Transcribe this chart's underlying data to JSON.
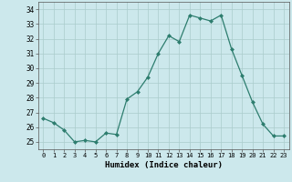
{
  "x": [
    0,
    1,
    2,
    3,
    4,
    5,
    6,
    7,
    8,
    9,
    10,
    11,
    12,
    13,
    14,
    15,
    16,
    17,
    18,
    19,
    20,
    21,
    22,
    23
  ],
  "y": [
    26.6,
    26.3,
    25.8,
    25.0,
    25.1,
    25.0,
    25.6,
    25.5,
    27.9,
    28.4,
    29.4,
    31.0,
    32.2,
    31.8,
    33.6,
    33.4,
    33.2,
    33.6,
    31.3,
    29.5,
    27.7,
    26.2,
    25.4,
    25.4
  ],
  "line_color": "#2d7d6e",
  "marker": "D",
  "markersize": 2.0,
  "linewidth": 0.9,
  "xlabel": "Humidex (Indice chaleur)",
  "xlabel_fontsize": 6.5,
  "ytick_fontsize": 5.5,
  "xtick_fontsize": 5.0,
  "xlim": [
    -0.5,
    23.5
  ],
  "ylim": [
    24.5,
    34.5
  ],
  "yticks": [
    25,
    26,
    27,
    28,
    29,
    30,
    31,
    32,
    33,
    34
  ],
  "xticks": [
    0,
    1,
    2,
    3,
    4,
    5,
    6,
    7,
    8,
    9,
    10,
    11,
    12,
    13,
    14,
    15,
    16,
    17,
    18,
    19,
    20,
    21,
    22,
    23
  ],
  "bg_color": "#cce8ec",
  "grid_color": "#aacccc",
  "fig_bg": "#cce8ec"
}
